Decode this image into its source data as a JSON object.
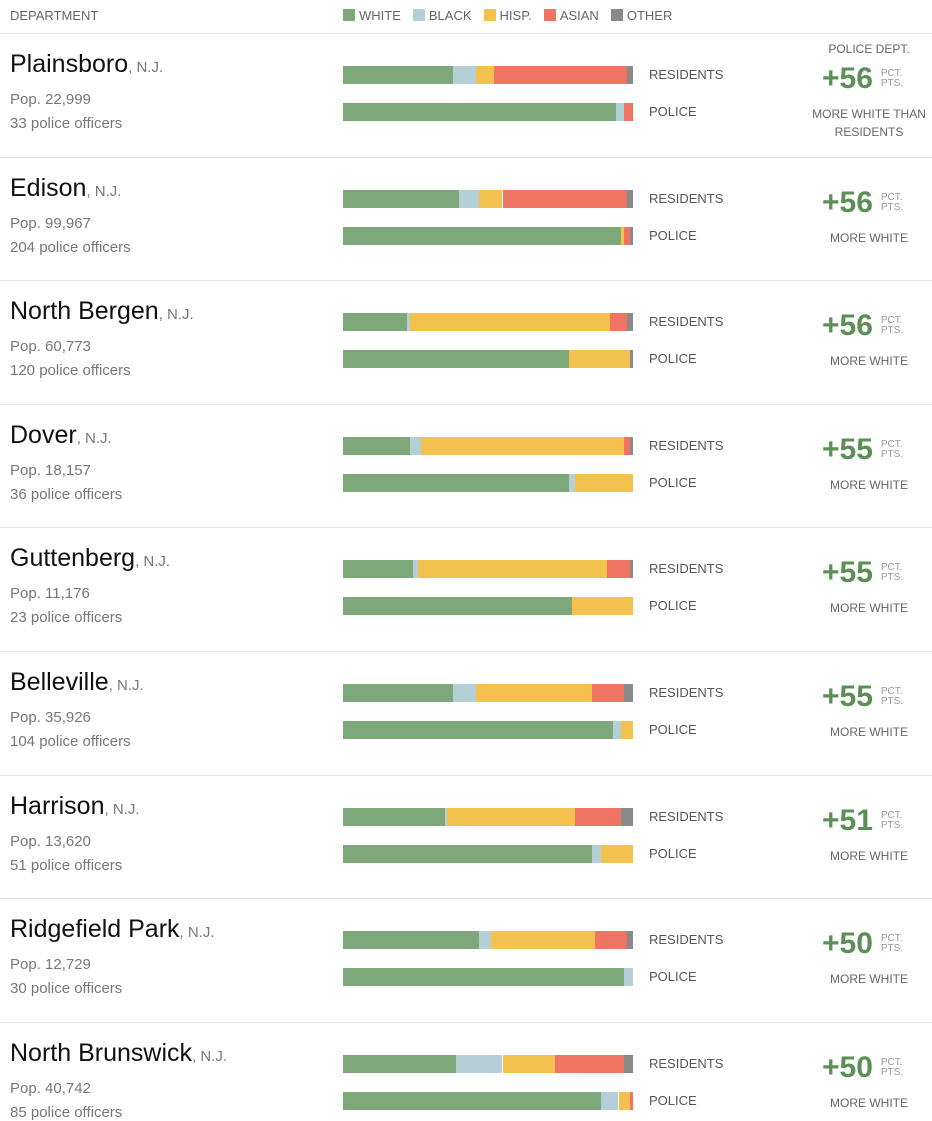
{
  "chart_data": {
    "type": "bar",
    "header": "DEPARTMENT",
    "series": [
      {
        "name": "WHITE",
        "color": "#7fa87a"
      },
      {
        "name": "BLACK",
        "color": "#b5cfd9"
      },
      {
        "name": "HISP.",
        "color": "#f2c14e"
      },
      {
        "name": "ASIAN",
        "color": "#ef7463"
      },
      {
        "name": "OTHER",
        "color": "#8a8a8a"
      }
    ],
    "residents_label": "RESIDENTS",
    "police_label": "POLICE",
    "unit_top": "PCT.",
    "unit_bottom": "PTS.",
    "first_caption_above": "POLICE DEPT.",
    "first_caption_below": "MORE WHITE THAN RESIDENTS",
    "caption_below": "MORE WHITE",
    "rows": [
      {
        "name": "Plainsboro",
        "state": ", N.J.",
        "population": "Pop. 22,999",
        "officers": "33 police officers",
        "residents": [
          38,
          8,
          6,
          46,
          2
        ],
        "police": [
          94,
          3,
          0,
          3,
          0
        ],
        "difference": 56,
        "difference_label": "+56"
      },
      {
        "name": "Edison",
        "state": ", N.J.",
        "population": "Pop. 99,967",
        "officers": "204 police officers",
        "residents": [
          40,
          7,
          8,
          43,
          2
        ],
        "police": [
          96,
          0,
          1,
          2,
          1
        ],
        "difference": 56,
        "difference_label": "+56"
      },
      {
        "name": "North Bergen",
        "state": ", N.J.",
        "population": "Pop. 60,773",
        "officers": "120 police officers",
        "residents": [
          22,
          1,
          69,
          6,
          2
        ],
        "police": [
          78,
          0,
          21,
          0,
          1
        ],
        "difference": 56,
        "difference_label": "+56"
      },
      {
        "name": "Dover",
        "state": ", N.J.",
        "population": "Pop. 18,157",
        "officers": "36 police officers",
        "residents": [
          23,
          4,
          70,
          2,
          1
        ],
        "police": [
          78,
          2,
          20,
          0,
          0
        ],
        "difference": 55,
        "difference_label": "+55"
      },
      {
        "name": "Guttenberg",
        "state": ", N.J.",
        "population": "Pop. 11,176",
        "officers": "23 police officers",
        "residents": [
          24,
          2,
          65,
          8,
          1
        ],
        "police": [
          79,
          0,
          21,
          0,
          0
        ],
        "difference": 55,
        "difference_label": "+55"
      },
      {
        "name": "Belleville",
        "state": ", N.J.",
        "population": "Pop. 35,926",
        "officers": "104 police officers",
        "residents": [
          38,
          8,
          40,
          11,
          3
        ],
        "police": [
          93,
          3,
          4,
          0,
          0
        ],
        "difference": 55,
        "difference_label": "+55"
      },
      {
        "name": "Harrison",
        "state": ", N.J.",
        "population": "Pop. 13,620",
        "officers": "51 police officers",
        "residents": [
          35,
          1,
          44,
          16,
          4
        ],
        "police": [
          86,
          3,
          11,
          0,
          0
        ],
        "difference": 51,
        "difference_label": "+51"
      },
      {
        "name": "Ridgefield Park",
        "state": ", N.J.",
        "population": "Pop. 12,729",
        "officers": "30 police officers",
        "residents": [
          47,
          4,
          36,
          11,
          2
        ],
        "police": [
          97,
          3,
          0,
          0,
          0
        ],
        "difference": 50,
        "difference_label": "+50"
      },
      {
        "name": "North Brunswick",
        "state": ", N.J.",
        "population": "Pop. 40,742",
        "officers": "85 police officers",
        "residents": [
          39,
          16,
          18,
          24,
          3
        ],
        "police": [
          89,
          6,
          4,
          1,
          0
        ],
        "difference": 50,
        "difference_label": "+50"
      }
    ]
  }
}
